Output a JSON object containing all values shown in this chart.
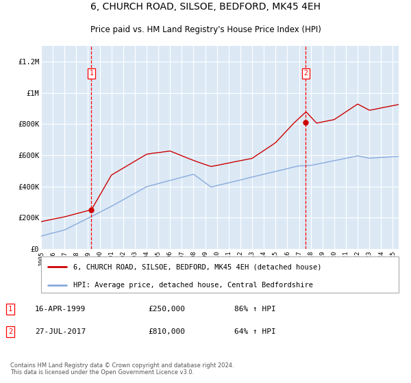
{
  "title": "6, CHURCH ROAD, SILSOE, BEDFORD, MK45 4EH",
  "subtitle": "Price paid vs. HM Land Registry's House Price Index (HPI)",
  "title_fontsize": 10,
  "subtitle_fontsize": 8.5,
  "bg_color": "#dce9f5",
  "grid_color": "#ffffff",
  "red_line_color": "#cc0000",
  "blue_line_color": "#88aadd",
  "sale1_date_x": 1999.29,
  "sale1_price": 250000,
  "sale2_date_x": 2017.57,
  "sale2_price": 810000,
  "xmin": 1995,
  "xmax": 2025.5,
  "ymin": 0,
  "ymax": 1300000,
  "legend_label_red": "6, CHURCH ROAD, SILSOE, BEDFORD, MK45 4EH (detached house)",
  "legend_label_blue": "HPI: Average price, detached house, Central Bedfordshire",
  "annotation1_date": "16-APR-1999",
  "annotation1_price": "£250,000",
  "annotation1_hpi": "86% ↑ HPI",
  "annotation2_date": "27-JUL-2017",
  "annotation2_price": "£810,000",
  "annotation2_hpi": "64% ↑ HPI",
  "footer": "Contains HM Land Registry data © Crown copyright and database right 2024.\nThis data is licensed under the Open Government Licence v3.0.",
  "yticks": [
    0,
    200000,
    400000,
    600000,
    800000,
    1000000,
    1200000
  ],
  "ytick_labels": [
    "£0",
    "£200K",
    "£400K",
    "£600K",
    "£800K",
    "£1M",
    "£1.2M"
  ]
}
